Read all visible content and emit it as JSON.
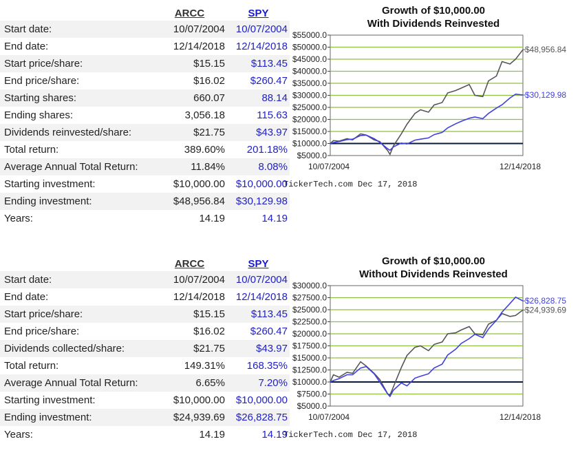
{
  "tables": [
    {
      "header": {
        "ticker1": "ARCC",
        "ticker2": "SPY"
      },
      "rows": [
        {
          "label": "Start date:",
          "v1": "10/07/2004",
          "v2": "10/07/2004"
        },
        {
          "label": "End date:",
          "v1": "12/14/2018",
          "v2": "12/14/2018"
        },
        {
          "label": "Start price/share:",
          "v1": "$15.15",
          "v2": "$113.45"
        },
        {
          "label": "End price/share:",
          "v1": "$16.02",
          "v2": "$260.47"
        },
        {
          "label": "Starting shares:",
          "v1": "660.07",
          "v2": "88.14"
        },
        {
          "label": "Ending shares:",
          "v1": "3,056.18",
          "v2": "115.63"
        },
        {
          "label": "Dividends reinvested/share:",
          "v1": "$21.75",
          "v2": "$43.97"
        },
        {
          "label": "Total return:",
          "v1": "389.60%",
          "v2": "201.18%"
        },
        {
          "label": "Average Annual Total Return:",
          "v1": "11.84%",
          "v2": "8.08%"
        },
        {
          "label": "Starting investment:",
          "v1": "$10,000.00",
          "v2": "$10,000.00"
        },
        {
          "label": "Ending investment:",
          "v1": "$48,956.84",
          "v2": "$30,129.98"
        },
        {
          "label": "Years:",
          "v1": "14.19",
          "v2": "14.19"
        }
      ]
    },
    {
      "header": {
        "ticker1": "ARCC",
        "ticker2": "SPY"
      },
      "rows": [
        {
          "label": "Start date:",
          "v1": "10/07/2004",
          "v2": "10/07/2004"
        },
        {
          "label": "End date:",
          "v1": "12/14/2018",
          "v2": "12/14/2018"
        },
        {
          "label": "Start price/share:",
          "v1": "$15.15",
          "v2": "$113.45"
        },
        {
          "label": "End price/share:",
          "v1": "$16.02",
          "v2": "$260.47"
        },
        {
          "label": "Dividends collected/share:",
          "v1": "$21.75",
          "v2": "$43.97"
        },
        {
          "label": "Total return:",
          "v1": "149.31%",
          "v2": "168.35%"
        },
        {
          "label": "Average Annual Total Return:",
          "v1": "6.65%",
          "v2": "7.20%"
        },
        {
          "label": "Starting investment:",
          "v1": "$10,000.00",
          "v2": "$10,000.00"
        },
        {
          "label": "Ending investment:",
          "v1": "$24,939.69",
          "v2": "$26,828.75"
        },
        {
          "label": "Years:",
          "v1": "14.19",
          "v2": "14.19"
        }
      ]
    }
  ],
  "colors": {
    "arcc": "#555555",
    "spy": "#4040e0",
    "grid": "#8fbf3f",
    "baseline": "#0a1a3a"
  },
  "chart_data": [
    {
      "type": "line",
      "title_line1": "Growth of $10,000.00",
      "title_line2": "With Dividends Reinvested",
      "x_start_label": "10/07/2004",
      "x_end_label": "12/14/2018",
      "ylim": [
        5000,
        55000
      ],
      "yticks": [
        5000,
        10000,
        15000,
        20000,
        25000,
        30000,
        35000,
        40000,
        45000,
        50000,
        55000
      ],
      "ytick_labels": [
        "$5000.0",
        "$10000.0",
        "$15000.0",
        "$20000.0",
        "$25000.0",
        "$30000.0",
        "$35000.0",
        "$40000.0",
        "$45000.0",
        "$50000.0",
        "$55000.0"
      ],
      "baseline": 10000,
      "grid": true,
      "x": [
        "2004-10-07",
        "2005-01-01",
        "2005-06-01",
        "2006-01-01",
        "2006-06-01",
        "2007-01-01",
        "2007-06-01",
        "2008-01-01",
        "2008-06-01",
        "2009-01-01",
        "2009-03-01",
        "2009-06-01",
        "2010-01-01",
        "2010-06-01",
        "2011-01-01",
        "2011-06-01",
        "2012-01-01",
        "2012-06-01",
        "2013-01-01",
        "2013-06-01",
        "2014-01-01",
        "2014-06-01",
        "2015-01-01",
        "2015-06-01",
        "2016-01-01",
        "2016-06-01",
        "2017-01-01",
        "2017-06-01",
        "2018-01-01",
        "2018-06-01",
        "2018-12-14"
      ],
      "series": [
        {
          "name": "ARCC",
          "end_label": "$48,956.84",
          "values": [
            10000,
            11200,
            11000,
            12000,
            11500,
            14000,
            13500,
            11500,
            10800,
            7000,
            5500,
            9000,
            14000,
            18000,
            22500,
            24000,
            23000,
            26000,
            27000,
            31000,
            32000,
            33000,
            34500,
            30000,
            29500,
            36000,
            38000,
            44000,
            43000,
            45000,
            48956.84
          ]
        },
        {
          "name": "SPY",
          "end_label": "$30,129.98",
          "values": [
            10000,
            10400,
            10800,
            11600,
            11800,
            13300,
            13500,
            12000,
            10500,
            7800,
            7200,
            8600,
            10200,
            9800,
            11400,
            11800,
            12300,
            13700,
            14600,
            16500,
            18200,
            19200,
            20500,
            21000,
            20300,
            22500,
            24700,
            26100,
            28900,
            30500,
            30129.98
          ]
        }
      ]
    },
    {
      "type": "line",
      "title_line1": "Growth of $10,000.00",
      "title_line2": "Without Dividends Reinvested",
      "x_start_label": "10/07/2004",
      "x_end_label": "12/14/2018",
      "ylim": [
        5000,
        30000
      ],
      "yticks": [
        5000,
        7500,
        10000,
        12500,
        15000,
        17500,
        20000,
        22500,
        25000,
        27500,
        30000
      ],
      "ytick_labels": [
        "$5000.0",
        "$7500.0",
        "$10000.0",
        "$12500.0",
        "$15000.0",
        "$17500.0",
        "$20000.0",
        "$22500.0",
        "$25000.0",
        "$27500.0",
        "$30000.0"
      ],
      "baseline": 10000,
      "grid": true,
      "x": [
        "2004-10-07",
        "2005-01-01",
        "2005-06-01",
        "2006-01-01",
        "2006-06-01",
        "2007-01-01",
        "2007-06-01",
        "2008-01-01",
        "2008-06-01",
        "2009-01-01",
        "2009-03-01",
        "2009-06-01",
        "2010-01-01",
        "2010-06-01",
        "2011-01-01",
        "2011-06-01",
        "2012-01-01",
        "2012-06-01",
        "2013-01-01",
        "2013-06-01",
        "2014-01-01",
        "2014-06-01",
        "2015-01-01",
        "2015-06-01",
        "2016-01-01",
        "2016-06-01",
        "2017-01-01",
        "2017-06-01",
        "2018-01-01",
        "2018-06-01",
        "2018-12-14"
      ],
      "series": [
        {
          "name": "ARCC",
          "end_label": "$24,939.69",
          "values": [
            10000,
            11500,
            11000,
            12000,
            11800,
            14200,
            13300,
            11800,
            10500,
            7500,
            7300,
            9000,
            13000,
            15500,
            17200,
            17500,
            16500,
            17800,
            18300,
            20000,
            20200,
            20800,
            21500,
            20000,
            19800,
            22000,
            22800,
            24200,
            23600,
            23800,
            24939.69
          ]
        },
        {
          "name": "SPY",
          "end_label": "$26,828.75",
          "values": [
            10000,
            10300,
            10700,
            11500,
            11500,
            12900,
            13200,
            11700,
            10000,
            7500,
            7000,
            8300,
            9800,
            9200,
            10800,
            11200,
            11700,
            12900,
            13700,
            15600,
            16800,
            18000,
            19000,
            19900,
            19200,
            21000,
            22800,
            24500,
            26300,
            27600,
            26828.75
          ]
        }
      ]
    }
  ],
  "footers": [
    {
      "source": "TickerTech.com",
      "date": "Dec 17, 2018"
    },
    {
      "source": "TickerTech.com",
      "date": "Dec 17, 2018"
    }
  ]
}
